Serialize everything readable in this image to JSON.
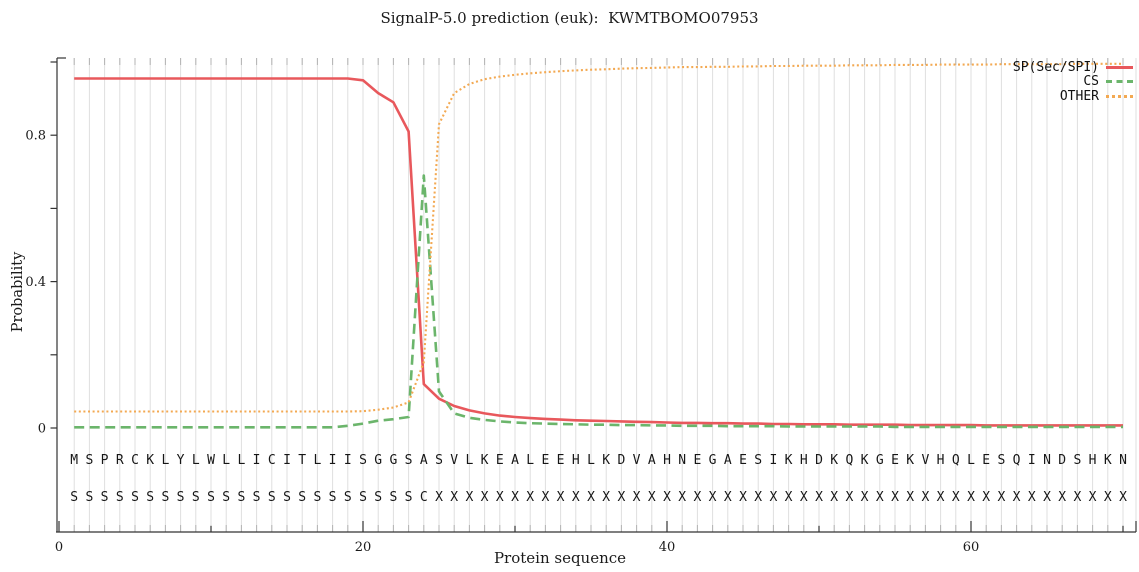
{
  "title": "SignalP-5.0 prediction (euk):  KWMTBOMO07953",
  "legend": {
    "items": [
      {
        "label": "SP(Sec/SPI)",
        "color": "#e8585c",
        "style": "solid"
      },
      {
        "label": "CS",
        "color": "#6bb56b",
        "style": "dashed"
      },
      {
        "label": "OTHER",
        "color": "#f3a952",
        "style": "dotted"
      }
    ]
  },
  "chart_data": {
    "type": "line",
    "title": "SignalP-5.0 prediction (euk):  KWMTBOMO07953",
    "xlabel": "Protein sequence",
    "ylabel": "Probability",
    "xlim": [
      0,
      71
    ],
    "ylim": [
      0,
      1.05
    ],
    "grid": "vertical-per-residue",
    "legend_position": "top-right",
    "xticks": [
      {
        "v": 0,
        "label": "0"
      },
      {
        "v": 10
      },
      {
        "v": 20,
        "label": "20"
      },
      {
        "v": 30
      },
      {
        "v": 40,
        "label": "40"
      },
      {
        "v": 50
      },
      {
        "v": 60,
        "label": "60"
      },
      {
        "v": 70
      }
    ],
    "yticks": [
      {
        "v": 0,
        "label": "0"
      },
      {
        "v": 0.2
      },
      {
        "v": 0.4,
        "label": "0.4"
      },
      {
        "v": 0.6
      },
      {
        "v": 0.8,
        "label": "0.8"
      },
      {
        "v": 1.0
      }
    ],
    "x_positions": "residues 1-70",
    "sequence": "MSPRCKLYLWLLICITLIISGGSASVLKEALEEHLKDVAHNEGAESIKHDKQKGEKVHQLESQINDSHKN",
    "annotation": "SSSSSSSSSSSSSSSSSSSSSSSCXXXXXXXXXXXXXXXXXXXXXXXXXXXXXXXXXXXXXXXXXXXXXX",
    "series": [
      {
        "name": "SP(Sec/SPI)",
        "color": "#e8585c",
        "style": "solid",
        "values": [
          0.955,
          0.955,
          0.955,
          0.955,
          0.955,
          0.955,
          0.955,
          0.955,
          0.955,
          0.955,
          0.955,
          0.955,
          0.955,
          0.955,
          0.955,
          0.955,
          0.955,
          0.955,
          0.955,
          0.95,
          0.915,
          0.89,
          0.81,
          0.12,
          0.08,
          0.06,
          0.048,
          0.04,
          0.034,
          0.03,
          0.027,
          0.025,
          0.023,
          0.021,
          0.02,
          0.019,
          0.018,
          0.017,
          0.016,
          0.015,
          0.014,
          0.014,
          0.013,
          0.013,
          0.012,
          0.012,
          0.011,
          0.011,
          0.01,
          0.01,
          0.01,
          0.009,
          0.009,
          0.009,
          0.009,
          0.008,
          0.008,
          0.008,
          0.008,
          0.008,
          0.007,
          0.007,
          0.007,
          0.007,
          0.007,
          0.007,
          0.007,
          0.007,
          0.007,
          0.007
        ]
      },
      {
        "name": "CS",
        "color": "#6bb56b",
        "style": "dashed",
        "values": [
          0.002,
          0.002,
          0.002,
          0.002,
          0.002,
          0.002,
          0.002,
          0.002,
          0.002,
          0.002,
          0.002,
          0.002,
          0.002,
          0.002,
          0.002,
          0.002,
          0.002,
          0.002,
          0.006,
          0.012,
          0.02,
          0.024,
          0.03,
          0.69,
          0.1,
          0.04,
          0.028,
          0.022,
          0.018,
          0.015,
          0.013,
          0.012,
          0.011,
          0.01,
          0.009,
          0.009,
          0.008,
          0.008,
          0.007,
          0.007,
          0.006,
          0.006,
          0.006,
          0.005,
          0.005,
          0.005,
          0.005,
          0.004,
          0.004,
          0.004,
          0.004,
          0.004,
          0.004,
          0.004,
          0.003,
          0.003,
          0.003,
          0.003,
          0.003,
          0.003,
          0.003,
          0.003,
          0.003,
          0.003,
          0.003,
          0.003,
          0.003,
          0.003,
          0.003,
          0.003
        ]
      },
      {
        "name": "OTHER",
        "color": "#f3a952",
        "style": "dotted",
        "values": [
          0.045,
          0.045,
          0.045,
          0.045,
          0.045,
          0.045,
          0.045,
          0.045,
          0.045,
          0.045,
          0.045,
          0.045,
          0.045,
          0.045,
          0.045,
          0.045,
          0.045,
          0.045,
          0.045,
          0.046,
          0.05,
          0.056,
          0.07,
          0.18,
          0.83,
          0.915,
          0.94,
          0.953,
          0.96,
          0.965,
          0.969,
          0.972,
          0.975,
          0.977,
          0.979,
          0.98,
          0.982,
          0.983,
          0.984,
          0.985,
          0.986,
          0.986,
          0.987,
          0.987,
          0.988,
          0.988,
          0.989,
          0.989,
          0.99,
          0.99,
          0.99,
          0.991,
          0.991,
          0.991,
          0.992,
          0.992,
          0.992,
          0.993,
          0.993,
          0.993,
          0.993,
          0.994,
          0.994,
          0.994,
          0.994,
          0.994,
          0.995,
          0.995,
          0.995,
          0.995
        ]
      }
    ]
  }
}
